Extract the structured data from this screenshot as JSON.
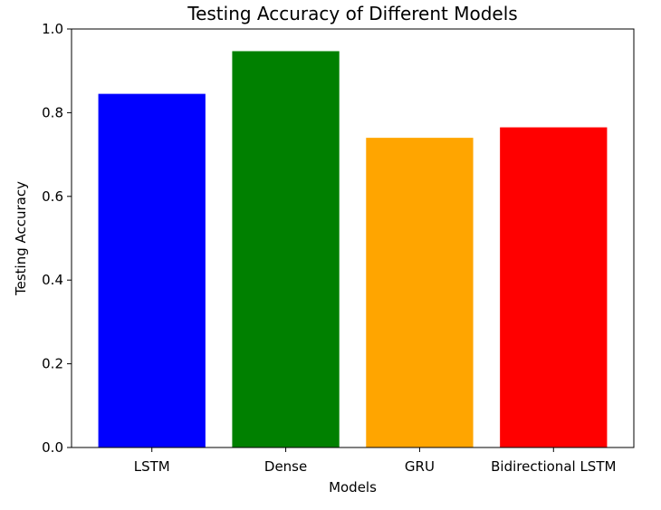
{
  "chart_data": {
    "type": "bar",
    "title": "Testing Accuracy of Different Models",
    "xlabel": "Models",
    "ylabel": "Testing Accuracy",
    "categories": [
      "LSTM",
      "Dense",
      "GRU",
      "Bidirectional LSTM"
    ],
    "values": [
      0.845,
      0.947,
      0.74,
      0.765
    ],
    "colors": [
      "#0000ff",
      "#008000",
      "#ffa500",
      "#ff0000"
    ],
    "ylim": [
      0,
      1.0
    ],
    "yticks": [
      "0.0",
      "0.2",
      "0.4",
      "0.6",
      "0.8",
      "1.0"
    ],
    "grid": false,
    "legend": "none"
  }
}
